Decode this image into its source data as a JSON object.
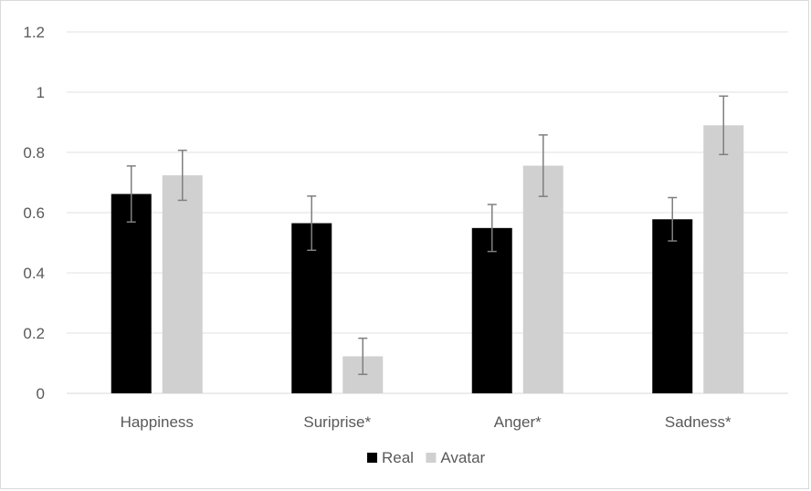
{
  "chart_data": {
    "type": "bar",
    "title": "",
    "xlabel": "",
    "ylabel": "",
    "categories": [
      "Happiness",
      "Suriprise*",
      "Anger*",
      "Sadness*"
    ],
    "ylim": [
      0,
      1.2
    ],
    "yticks": [
      "0",
      "0.2",
      "0.4",
      "0.6",
      "0.8",
      "1",
      "1.2"
    ],
    "grid": true,
    "legend_position": "bottom",
    "series": [
      {
        "name": "Real",
        "color": "#000000",
        "values": [
          0.662,
          0.565,
          0.549,
          0.578
        ],
        "error": [
          0.093,
          0.09,
          0.078,
          0.072
        ]
      },
      {
        "name": "Avatar",
        "color": "#d0d0d0",
        "values": [
          0.724,
          0.123,
          0.756,
          0.89
        ],
        "error": [
          0.083,
          0.06,
          0.102,
          0.097
        ]
      }
    ],
    "error_bar_color": "#7f7f7f"
  }
}
